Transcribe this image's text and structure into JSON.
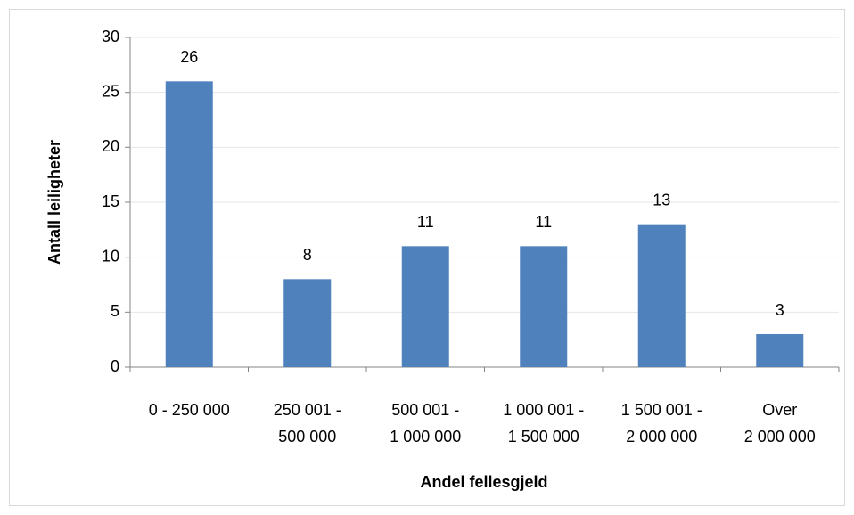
{
  "chart_data": {
    "type": "bar",
    "y_label": "Antall leiligheter",
    "x_label": "Andel fellesgjeld",
    "categories": [
      "0 - 250 000",
      "250 001 -\n500 000",
      "500 001  -\n1 000 000",
      "1 000 001  -\n1 500 000",
      "1 500 001  -\n2 000 000",
      "Over\n2 000 000"
    ],
    "values": [
      26,
      8,
      11,
      11,
      13,
      3
    ],
    "color": "#4f81bd",
    "ylim": [
      0,
      30
    ],
    "yticks": [
      0,
      5,
      10,
      15,
      20,
      25,
      30
    ],
    "grid": true
  }
}
